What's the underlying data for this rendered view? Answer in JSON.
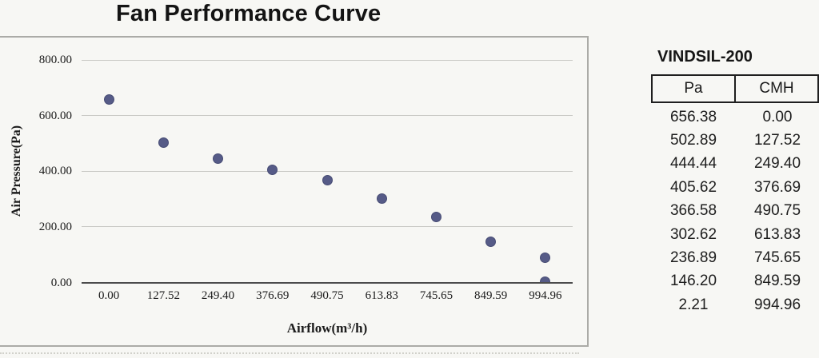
{
  "chart_data": {
    "type": "scatter",
    "title": "Fan Performance Curve",
    "xlabel": "Airflow(m³/h)",
    "ylabel": "Air Pressure(Pa)",
    "x_axis_type": "category",
    "categories": [
      "0.00",
      "127.52",
      "249.40",
      "376.69",
      "490.75",
      "613.83",
      "745.65",
      "849.59",
      "994.96"
    ],
    "y_tick_labels": [
      "800.00",
      "600.00",
      "400.00",
      "200.00",
      "0.00"
    ],
    "y_tick_values": [
      800,
      600,
      400,
      200,
      0
    ],
    "ylim": [
      0,
      800
    ],
    "grid": true,
    "legend": false,
    "marker_color": "#565b87",
    "points": [
      {
        "cmh": "0.00",
        "pa": 656.38
      },
      {
        "cmh": "127.52",
        "pa": 502.89
      },
      {
        "cmh": "249.40",
        "pa": 444.44
      },
      {
        "cmh": "376.69",
        "pa": 405.62
      },
      {
        "cmh": "490.75",
        "pa": 366.58
      },
      {
        "cmh": "613.83",
        "pa": 302.62
      },
      {
        "cmh": "745.65",
        "pa": 236.89
      },
      {
        "cmh": "849.59",
        "pa": 146.2
      },
      {
        "cmh": "994.96",
        "pa": 89.0
      },
      {
        "cmh": "994.96",
        "pa": 2.21
      }
    ]
  },
  "table": {
    "title": "VINDSIL-200",
    "columns": [
      "Pa",
      "CMH"
    ],
    "rows": [
      [
        "656.38",
        "0.00"
      ],
      [
        "502.89",
        "127.52"
      ],
      [
        "444.44",
        "249.40"
      ],
      [
        "405.62",
        "376.69"
      ],
      [
        "366.58",
        "490.75"
      ],
      [
        "302.62",
        "613.83"
      ],
      [
        "236.89",
        "745.65"
      ],
      [
        "146.20",
        "849.59"
      ],
      [
        "2.21",
        "994.96"
      ]
    ]
  },
  "colors": {
    "background": "#f7f7f4",
    "marker": "#565b87",
    "marker_edge": "#474c74",
    "gridline": "#c9c9c5",
    "axis_line": "#4c4c4c",
    "frame_border": "#ababa7",
    "table_border": "#1f1f1f",
    "text": "#1b1b1b"
  }
}
